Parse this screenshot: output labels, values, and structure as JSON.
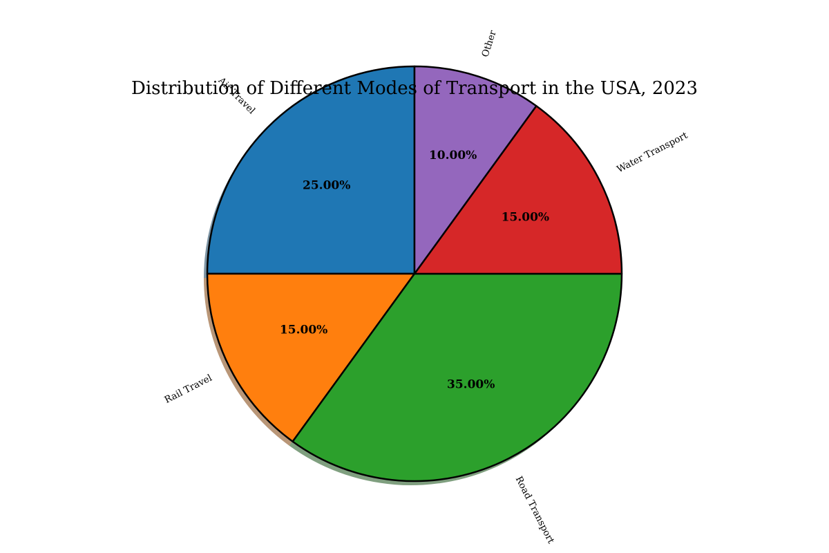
{
  "chart_data": {
    "type": "pie",
    "title": "Distribution of Different Modes of Transport in the USA, 2023",
    "categories": [
      "Air Travel",
      "Rail Travel",
      "Road Transport",
      "Water Transport",
      "Other"
    ],
    "values": [
      25,
      15,
      35,
      15,
      10
    ],
    "percent_labels": [
      "25.00%",
      "15.00%",
      "35.00%",
      "15.00%",
      "10.00%"
    ],
    "colors": [
      "#1f77b4",
      "#ff7f0e",
      "#2ca02c",
      "#d62728",
      "#9467bd"
    ],
    "start_angle_deg": 90,
    "direction": "counterclockwise",
    "shadow": true,
    "legend": "none"
  }
}
